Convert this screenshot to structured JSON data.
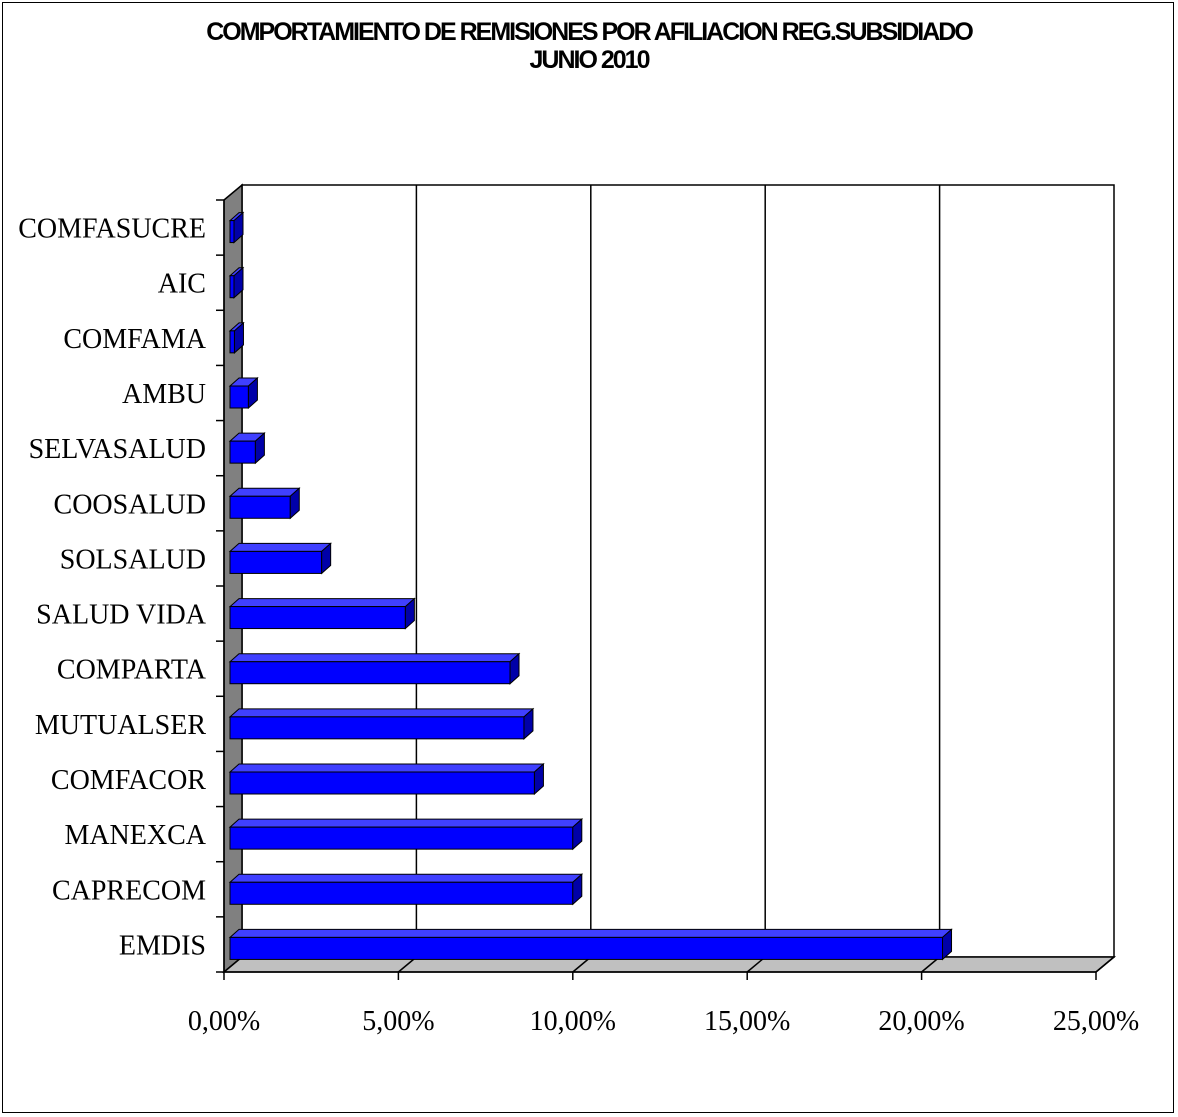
{
  "chart_data": {
    "type": "bar",
    "orientation": "horizontal",
    "style": "3d",
    "title": "COMPORTAMIENTO DE REMISIONES POR AFILIACION REG.SUBSIDIADO",
    "subtitle": "JUNIO 2010",
    "categories": [
      "COMFASUCRE",
      "AIC",
      "COMFAMA",
      "AMBU",
      "SELVASALUD",
      "COOSALUD",
      "SOLSALUD",
      "SALUD VIDA",
      "COMPARTA",
      "MUTUALSER",
      "COMFACOR",
      "MANEXCA",
      "CAPRECOM",
      "EMDIS"
    ],
    "values": [
      0.1,
      0.15,
      0.3,
      0.7,
      0.9,
      1.9,
      2.8,
      5.2,
      8.2,
      8.6,
      8.9,
      10.0,
      10.0,
      20.6
    ],
    "xlim": [
      0,
      25
    ],
    "xticks": [
      "0,00%",
      "5,00%",
      "10,00%",
      "15,00%",
      "20,00%",
      "25,00%"
    ],
    "grid": true,
    "colors": {
      "bar": "#0000ff",
      "bar_top": "#4040ff",
      "bar_side": "#0000a8",
      "wall": "#808080",
      "floor": "#c0c0c0"
    }
  }
}
